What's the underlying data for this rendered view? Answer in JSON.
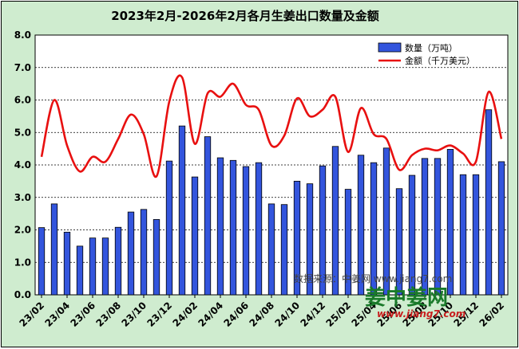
{
  "chart_data": {
    "type": "bar",
    "title": "2023年2月-2026年2月各月生姜出口数量及金额",
    "ylim": [
      0,
      8
    ],
    "yticks": [
      "0.0",
      "1.0",
      "2.0",
      "3.0",
      "4.0",
      "5.0",
      "6.0",
      "7.0",
      "8.0"
    ],
    "grid": true,
    "legend_position": "top-right",
    "categories": [
      "23/02",
      "23/03",
      "23/04",
      "23/05",
      "23/06",
      "23/07",
      "23/08",
      "23/09",
      "23/10",
      "23/11",
      "23/12",
      "24/01",
      "24/02",
      "24/03",
      "24/04",
      "24/05",
      "24/06",
      "24/07",
      "24/08",
      "24/09",
      "24/10",
      "24/11",
      "24/12",
      "25/01",
      "25/02",
      "25/03",
      "25/04",
      "25/05",
      "25/06",
      "25/07",
      "25/08",
      "25/09",
      "25/10",
      "25/11",
      "25/12",
      "26/01",
      "26/02"
    ],
    "x_tick_labels": [
      "23/02",
      "23/04",
      "23/06",
      "23/08",
      "23/10",
      "23/12",
      "24/02",
      "24/04",
      "24/06",
      "24/08",
      "24/10",
      "24/12",
      "25/02",
      "25/04",
      "25/06",
      "25/08",
      "25/10",
      "25/12",
      "26/02"
    ],
    "series": [
      {
        "name": "数量（万吨）",
        "type": "bar",
        "color": "#3355dd",
        "values": [
          2.07,
          2.8,
          1.93,
          1.5,
          1.75,
          1.75,
          2.08,
          2.55,
          2.63,
          2.32,
          4.12,
          5.2,
          3.63,
          4.87,
          4.22,
          4.14,
          3.95,
          4.07,
          2.8,
          2.78,
          3.5,
          3.42,
          3.97,
          4.57,
          3.25,
          4.3,
          4.07,
          4.52,
          3.27,
          3.68,
          4.2,
          4.2,
          4.48,
          3.7,
          3.7,
          5.7,
          4.1
        ]
      },
      {
        "name": "金额（千万美元）",
        "type": "line",
        "color": "#e81010",
        "values": [
          4.25,
          6.0,
          4.6,
          3.8,
          4.25,
          4.1,
          4.8,
          5.55,
          4.95,
          3.65,
          5.95,
          6.7,
          4.65,
          6.2,
          6.1,
          6.5,
          5.85,
          5.7,
          4.6,
          4.9,
          6.05,
          5.5,
          5.7,
          6.1,
          4.4,
          5.75,
          4.95,
          4.8,
          3.85,
          4.3,
          4.5,
          4.45,
          4.6,
          4.35,
          4.1,
          6.25,
          4.8
        ]
      }
    ]
  },
  "source_text": "数据来源：中姜网 www.jiang7.com",
  "logo": {
    "name_cn": "姜中姜网",
    "url": "www.jiang7.com"
  }
}
